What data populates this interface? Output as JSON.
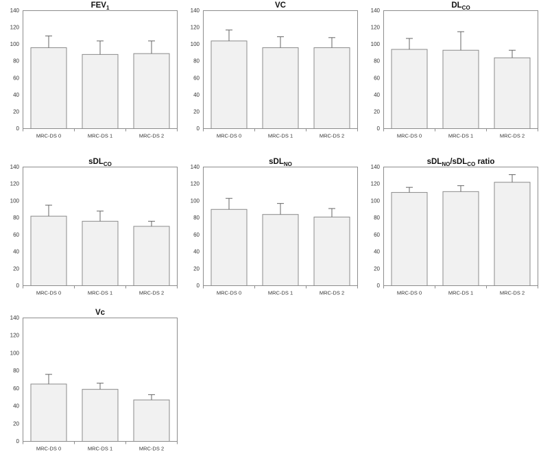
{
  "figure": {
    "background": "#ffffff",
    "columns": 3,
    "categories": [
      "MRC-DS 0",
      "MRC-DS 1",
      "MRC-DS 2"
    ],
    "y_axis": {
      "min": 0,
      "max": 140,
      "step": 20,
      "ticks": [
        0,
        20,
        40,
        60,
        80,
        100,
        120,
        140
      ]
    }
  },
  "style": {
    "bar_fill": "#f1f1f1",
    "bar_stroke": "#8a8a8a",
    "plot_border": "#8c8c8c",
    "plot_fill": "#ffffff",
    "error_color": "#646464",
    "tick_text_color": "#333333",
    "title_color": "#111111"
  },
  "chart_data": [
    {
      "type": "bar",
      "title": "FEV1",
      "title_parts": [
        {
          "text": "FEV"
        },
        {
          "text": "1",
          "sub": true
        }
      ],
      "categories": [
        "MRC-DS 0",
        "MRC-DS 1",
        "MRC-DS 2"
      ],
      "values": [
        96,
        88,
        89
      ],
      "errors_plus": [
        14,
        16,
        15
      ],
      "ylim": [
        0,
        140
      ],
      "yticks": [
        0,
        20,
        40,
        60,
        80,
        100,
        120,
        140
      ],
      "grid": false,
      "legend": false
    },
    {
      "type": "bar",
      "title": "VC",
      "title_parts": [
        {
          "text": "VC"
        }
      ],
      "categories": [
        "MRC-DS 0",
        "MRC-DS 1",
        "MRC-DS 2"
      ],
      "values": [
        104,
        96,
        96
      ],
      "errors_plus": [
        13,
        13,
        12
      ],
      "ylim": [
        0,
        140
      ],
      "yticks": [
        0,
        20,
        40,
        60,
        80,
        100,
        120,
        140
      ],
      "grid": false,
      "legend": false
    },
    {
      "type": "bar",
      "title": "DLCO",
      "title_parts": [
        {
          "text": "DL"
        },
        {
          "text": "CO",
          "sub": true
        }
      ],
      "categories": [
        "MRC-DS 0",
        "MRC-DS 1",
        "MRC-DS 2"
      ],
      "values": [
        94,
        93,
        84
      ],
      "errors_plus": [
        13,
        22,
        9
      ],
      "ylim": [
        0,
        140
      ],
      "yticks": [
        0,
        20,
        40,
        60,
        80,
        100,
        120,
        140
      ],
      "grid": false,
      "legend": false
    },
    {
      "type": "bar",
      "title": "sDLCO",
      "title_parts": [
        {
          "text": "sDL"
        },
        {
          "text": "CO",
          "sub": true
        }
      ],
      "categories": [
        "MRC-DS 0",
        "MRC-DS 1",
        "MRC-DS 2"
      ],
      "values": [
        82,
        76,
        70
      ],
      "errors_plus": [
        13,
        12,
        6
      ],
      "ylim": [
        0,
        140
      ],
      "yticks": [
        0,
        20,
        40,
        60,
        80,
        100,
        120,
        140
      ],
      "grid": false,
      "legend": false
    },
    {
      "type": "bar",
      "title": "sDLNO",
      "title_parts": [
        {
          "text": "sDL"
        },
        {
          "text": "NO",
          "sub": true
        }
      ],
      "categories": [
        "MRC-DS 0",
        "MRC-DS 1",
        "MRC-DS 2"
      ],
      "values": [
        90,
        84,
        81
      ],
      "errors_plus": [
        13,
        13,
        10
      ],
      "ylim": [
        0,
        140
      ],
      "yticks": [
        0,
        20,
        40,
        60,
        80,
        100,
        120,
        140
      ],
      "grid": false,
      "legend": false
    },
    {
      "type": "bar",
      "title": "sDLNO/sDLCO ratio",
      "title_parts": [
        {
          "text": "sDL"
        },
        {
          "text": "NO",
          "sub": true
        },
        {
          "text": "/sDL"
        },
        {
          "text": "CO",
          "sub": true
        },
        {
          "text": " ratio"
        }
      ],
      "categories": [
        "MRC-DS 0",
        "MRC-DS 1",
        "MRC-DS 2"
      ],
      "values": [
        110,
        111,
        122
      ],
      "errors_plus": [
        6,
        7,
        9
      ],
      "ylim": [
        0,
        140
      ],
      "yticks": [
        0,
        20,
        40,
        60,
        80,
        100,
        120,
        140
      ],
      "grid": false,
      "legend": false
    },
    {
      "type": "bar",
      "title": "Vc",
      "title_parts": [
        {
          "text": "Vc"
        }
      ],
      "categories": [
        "MRC-DS 0",
        "MRC-DS 1",
        "MRC-DS 2"
      ],
      "values": [
        65,
        59,
        47
      ],
      "errors_plus": [
        11,
        7,
        6
      ],
      "ylim": [
        0,
        140
      ],
      "yticks": [
        0,
        20,
        40,
        60,
        80,
        100,
        120,
        140
      ],
      "grid": false,
      "legend": false
    }
  ]
}
